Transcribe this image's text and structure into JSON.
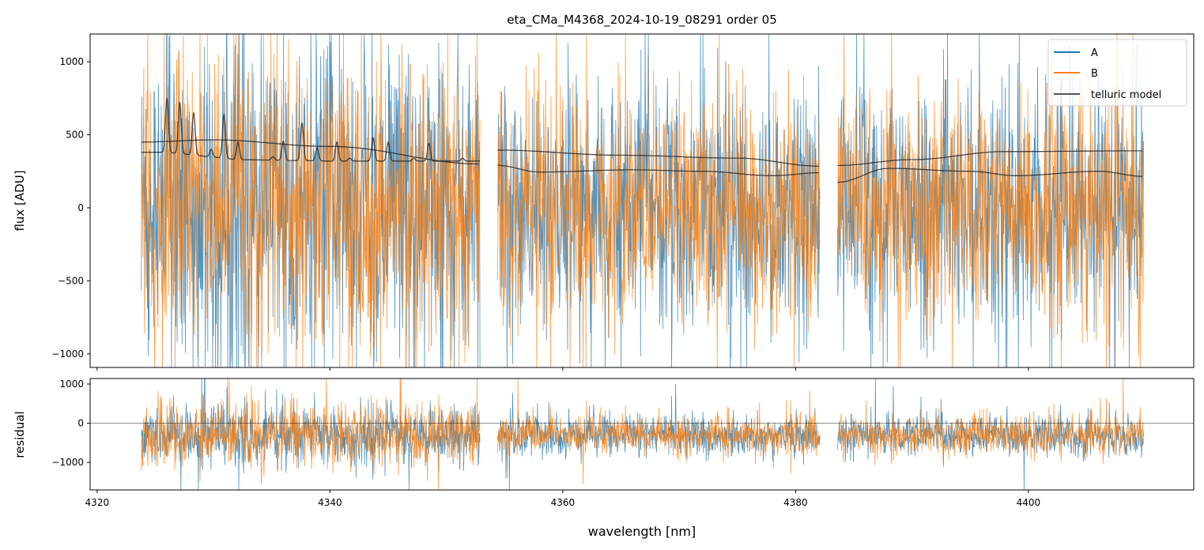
{
  "chart_data": [
    {
      "type": "line",
      "title": "eta_CMa_M4368_2024-10-19_08291  order 05",
      "xlabel": "",
      "ylabel": "flux [ADU]",
      "xlim": [
        4319.4,
        4414.2
      ],
      "ylim": [
        -1093,
        1190
      ],
      "xticks": [
        4320,
        4340,
        4360,
        4380,
        4400
      ],
      "yticks": [
        1000,
        500,
        0,
        -500,
        -1000
      ],
      "ytick_labels": [
        "1000",
        "500",
        "0",
        "−500",
        "−1000"
      ],
      "grid": false,
      "legend": {
        "placement": "top-right",
        "entries": [
          "A",
          "B",
          "telluric model"
        ]
      },
      "segments": [
        [
          4323.8,
          4352.9
        ],
        [
          4354.4,
          4382.1
        ],
        [
          4383.6,
          4409.9
        ]
      ],
      "series": [
        {
          "name": "A",
          "color": "#1f77b4",
          "description_level": "noisy spectrum, roughly centered at 0"
        },
        {
          "name": "B",
          "color": "#ff7f0e",
          "description_level": "noisy spectrum, roughly centered at 0"
        },
        {
          "name": "telluric model",
          "color": "#333333",
          "curves": [
            {
              "x": [
                4323.8,
                4330,
                4340,
                4352.9
              ],
              "y": [
                450,
                465,
                420,
                300
              ]
            },
            {
              "baseline_x": [
                4323.8,
                4326,
                4332,
                4340,
                4352.9
              ],
              "baseline_y": [
                380,
                380,
                330,
                320,
                320
              ],
              "lines": [
                [
                  4326.0,
                  747
                ],
                [
                  4327.1,
                  720
                ],
                [
                  4328.3,
                  650
                ],
                [
                  4329.8,
                  400
                ],
                [
                  4330.9,
                  640
                ],
                [
                  4332.1,
                  450
                ],
                [
                  4335.1,
                  350
                ],
                [
                  4336.0,
                  455
                ],
                [
                  4337.6,
                  580
                ],
                [
                  4338.9,
                  410
                ],
                [
                  4340.6,
                  450
                ],
                [
                  4341.7,
                  340
                ],
                [
                  4343.7,
                  480
                ],
                [
                  4345.0,
                  450
                ],
                [
                  4347.2,
                  340
                ],
                [
                  4348.5,
                  440
                ],
                [
                  4351.4,
                  340
                ]
              ]
            },
            {
              "x": [
                4354.4,
                4365,
                4375,
                4382.1
              ],
              "y": [
                395,
                360,
                340,
                285
              ]
            },
            {
              "x": [
                4354.4,
                4358,
                4366,
                4372,
                4378,
                4382.1
              ],
              "y": [
                290,
                245,
                260,
                250,
                220,
                240
              ]
            },
            {
              "x": [
                4383.6,
                4390,
                4398,
                4409.9
              ],
              "y": [
                290,
                330,
                385,
                390
              ]
            },
            {
              "x": [
                4383.6,
                4388,
                4395,
                4399,
                4406,
                4409.9
              ],
              "y": [
                175,
                270,
                250,
                220,
                250,
                215
              ]
            }
          ]
        }
      ]
    },
    {
      "type": "line",
      "xlabel": "wavelength [nm]",
      "ylabel": "residual",
      "xlim": [
        4319.4,
        4414.2
      ],
      "ylim": [
        -1700,
        1140
      ],
      "xticks": [
        4320,
        4340,
        4360,
        4380,
        4400
      ],
      "xtick_labels": [
        "4320",
        "4340",
        "4360",
        "4380",
        "4400"
      ],
      "yticks": [
        1000,
        0,
        -1000
      ],
      "ytick_labels": [
        "1000",
        "0",
        "−1000"
      ],
      "zero_line": 0,
      "series": [
        {
          "name": "A",
          "color": "#1f77b4"
        },
        {
          "name": "B",
          "color": "#ff7f0e"
        }
      ]
    }
  ]
}
